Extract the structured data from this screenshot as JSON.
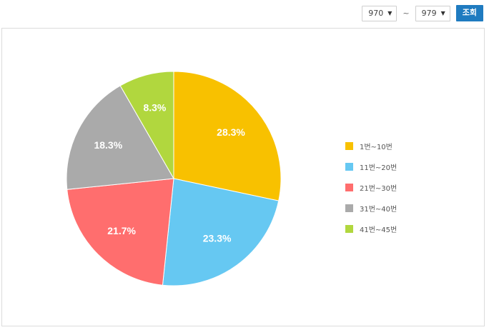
{
  "filter": {
    "from_value": "970",
    "to_value": "979",
    "separator": "~",
    "search_label": "조회"
  },
  "chart_data": {
    "type": "pie",
    "title": "",
    "categories": [
      "1번~10번",
      "11번~20번",
      "21번~30번",
      "31번~40번",
      "41번~45번"
    ],
    "values": [
      28.3,
      23.3,
      21.7,
      18.3,
      8.3
    ],
    "labels": [
      "28.3%",
      "23.3%",
      "21.7%",
      "18.3%",
      "8.3%"
    ],
    "colors": [
      "#f8c100",
      "#66c8f2",
      "#ff6e6e",
      "#aaaaaa",
      "#b1d73e"
    ],
    "start_angle": "12 o'clock",
    "direction": "clockwise",
    "legend_position": "right"
  }
}
